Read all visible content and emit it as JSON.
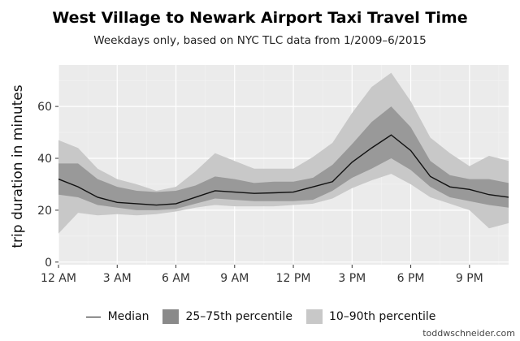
{
  "chart_data": {
    "type": "area",
    "title": "West Village to Newark Airport Taxi Travel Time",
    "subtitle": "Weekdays only, based on NYC TLC data from 1/2009–6/2015",
    "ylabel": "trip duration in minutes",
    "xlabel": "",
    "xlim": [
      0,
      23
    ],
    "ylim": [
      -1,
      76
    ],
    "x": [
      0,
      1,
      2,
      3,
      4,
      5,
      6,
      7,
      8,
      9,
      10,
      11,
      12,
      13,
      14,
      15,
      16,
      17,
      18,
      19,
      20,
      21,
      22,
      23
    ],
    "xticks": [
      0,
      3,
      6,
      9,
      12,
      15,
      18,
      21
    ],
    "xtick_labels": [
      "12 AM",
      "3 AM",
      "6 AM",
      "9 AM",
      "12 PM",
      "3 PM",
      "6 PM",
      "9 PM"
    ],
    "yticks": [
      0,
      20,
      40,
      60
    ],
    "ytick_labels": [
      "0",
      "20",
      "40",
      "60"
    ],
    "grid": true,
    "legend_position": "bottom",
    "series": [
      {
        "name": "10–90th percentile",
        "kind": "band",
        "color": "#c8c8c8",
        "low": [
          11,
          19,
          18,
          18.5,
          18,
          18.5,
          19.5,
          21,
          22,
          21.5,
          21.5,
          21.5,
          22,
          22.5,
          24.5,
          28.5,
          31.5,
          34,
          30,
          25,
          22.5,
          20,
          13,
          15
        ],
        "high": [
          47,
          44,
          36,
          32,
          30,
          27.5,
          29,
          35,
          42,
          39,
          36,
          36,
          36,
          40.5,
          46,
          57.5,
          67.5,
          73,
          62,
          48,
          42,
          37,
          41,
          39
        ]
      },
      {
        "name": "25–75th percentile",
        "kind": "band",
        "color": "#8a8a8a",
        "low": [
          26,
          25,
          22,
          21,
          20,
          20,
          20.5,
          22.5,
          24.5,
          24,
          23.5,
          23.5,
          23.5,
          24,
          27.5,
          32.5,
          36,
          40,
          35.5,
          29,
          25,
          23.5,
          22,
          21
        ],
        "high": [
          38,
          38,
          32,
          29,
          27.5,
          27,
          27.5,
          29.5,
          33,
          32,
          30.5,
          31,
          31,
          32.5,
          37.5,
          45.5,
          54,
          60,
          52,
          39,
          33.5,
          32,
          32,
          30.5
        ]
      },
      {
        "name": "Median",
        "kind": "line",
        "color": "#111111",
        "values": [
          32,
          29,
          25,
          23,
          22.5,
          22,
          22.5,
          25,
          27.5,
          27,
          26.5,
          26.7,
          27,
          29,
          31,
          38.5,
          44,
          49,
          43,
          33,
          29,
          28,
          26,
          25
        ]
      }
    ]
  },
  "legend": {
    "median_label": "Median",
    "p25_75_label": "25–75th percentile",
    "p10_90_label": "10–90th percentile"
  },
  "watermark": "toddwschneider.com",
  "colors": {
    "panel_bg": "#ebebeb",
    "grid_major": "#ffffff",
    "grid_minor": "#f4f4f4",
    "band_outer": "#c8c8c8",
    "band_inner": "#8a8a8a",
    "median_line": "#111111"
  }
}
